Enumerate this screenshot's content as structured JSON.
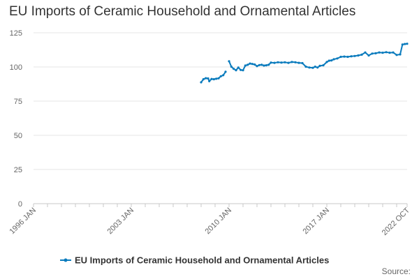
{
  "chart_data": {
    "type": "line",
    "title": "EU Imports of Ceramic Household and Ornamental Articles",
    "xlabel": "",
    "ylabel": "",
    "ylim": [
      0,
      125
    ],
    "yticks": [
      0,
      25,
      50,
      75,
      100,
      125
    ],
    "xlim": [
      "1996-01",
      "2022-10"
    ],
    "xtick_labels": [
      "1996 JAN",
      "2003 JAN",
      "2010 JAN",
      "2017 JAN",
      "2022 OCT"
    ],
    "grid": "horizontal",
    "legend_position": "bottom",
    "series": [
      {
        "name": "EU Imports of Ceramic Household and Ornamental Articles",
        "color": "#0a7bbd",
        "segments": [
          [
            [
              "2008-01",
              88.8
            ],
            [
              "2008-03",
              91.0
            ],
            [
              "2008-05",
              91.8
            ],
            [
              "2008-07",
              91.6
            ],
            [
              "2008-08",
              89.6
            ],
            [
              "2008-10",
              91.2
            ],
            [
              "2008-12",
              91.0
            ],
            [
              "2009-02",
              91.4
            ],
            [
              "2009-04",
              91.7
            ],
            [
              "2009-06",
              93.2
            ],
            [
              "2009-08",
              94.0
            ],
            [
              "2009-10",
              96.5
            ]
          ],
          [
            [
              "2010-01",
              104.2
            ],
            [
              "2010-03",
              100.2
            ],
            [
              "2010-05",
              98.6
            ],
            [
              "2010-07",
              97.6
            ],
            [
              "2010-09",
              99.6
            ],
            [
              "2010-11",
              97.8
            ],
            [
              "2011-01",
              97.6
            ],
            [
              "2011-03",
              101.0
            ],
            [
              "2011-05",
              101.6
            ],
            [
              "2011-07",
              102.5
            ],
            [
              "2011-09",
              102.2
            ],
            [
              "2011-11",
              101.8
            ],
            [
              "2012-01",
              100.6
            ],
            [
              "2012-03",
              101.4
            ],
            [
              "2012-05",
              101.6
            ],
            [
              "2012-07",
              101.0
            ],
            [
              "2012-09",
              101.2
            ],
            [
              "2012-11",
              101.6
            ],
            [
              "2013-01",
              103.2
            ],
            [
              "2013-04",
              103.0
            ],
            [
              "2013-07",
              103.4
            ],
            [
              "2013-10",
              103.2
            ],
            [
              "2014-01",
              103.4
            ],
            [
              "2014-04",
              103.0
            ],
            [
              "2014-07",
              103.6
            ],
            [
              "2014-10",
              103.4
            ],
            [
              "2015-01",
              103.0
            ],
            [
              "2015-04",
              102.8
            ],
            [
              "2015-07",
              100.2
            ],
            [
              "2015-10",
              99.6
            ],
            [
              "2016-01",
              99.4
            ],
            [
              "2016-03",
              100.2
            ],
            [
              "2016-05",
              99.6
            ],
            [
              "2016-07",
              100.8
            ],
            [
              "2016-10",
              101.2
            ],
            [
              "2017-01",
              103.6
            ],
            [
              "2017-03",
              104.6
            ],
            [
              "2017-05",
              104.8
            ],
            [
              "2017-07",
              105.6
            ],
            [
              "2017-10",
              106.2
            ],
            [
              "2018-01",
              107.4
            ],
            [
              "2018-04",
              107.6
            ],
            [
              "2018-07",
              107.4
            ],
            [
              "2018-10",
              107.8
            ],
            [
              "2019-01",
              108.0
            ],
            [
              "2019-04",
              108.4
            ],
            [
              "2019-07",
              109.0
            ],
            [
              "2019-10",
              110.6
            ],
            [
              "2020-01",
              108.4
            ],
            [
              "2020-04",
              109.8
            ],
            [
              "2020-07",
              110.0
            ],
            [
              "2020-10",
              110.6
            ],
            [
              "2021-01",
              110.4
            ],
            [
              "2021-04",
              110.8
            ],
            [
              "2021-07",
              110.4
            ],
            [
              "2021-10",
              110.6
            ],
            [
              "2022-01",
              108.8
            ],
            [
              "2022-04",
              109.2
            ],
            [
              "2022-06",
              116.4
            ],
            [
              "2022-08",
              116.8
            ],
            [
              "2022-10",
              117.0
            ]
          ]
        ]
      }
    ]
  },
  "footer": {
    "source_label": "Source:"
  }
}
